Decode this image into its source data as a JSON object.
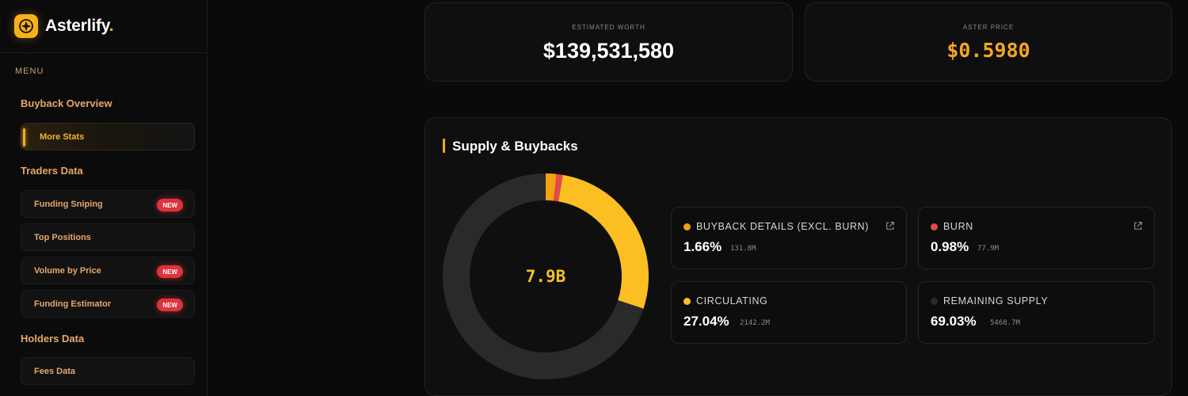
{
  "brand": {
    "name": "Asterlify",
    "dot": ".",
    "accent": "#f7b21b"
  },
  "sidebar": {
    "menu_label": "MENU",
    "sections": [
      {
        "title": "Buyback Overview",
        "items": [
          {
            "label": "More Stats",
            "active": true,
            "badge": ""
          }
        ]
      },
      {
        "title": "Traders Data",
        "items": [
          {
            "label": "Funding Sniping",
            "badge": "NEW"
          },
          {
            "label": "Top Positions",
            "badge": ""
          },
          {
            "label": "Volume by Price",
            "badge": "NEW"
          },
          {
            "label": "Funding Estimator",
            "badge": "NEW"
          }
        ]
      },
      {
        "title": "Holders Data",
        "items": [
          {
            "label": "Fees Data",
            "badge": ""
          }
        ]
      }
    ]
  },
  "stats": {
    "worth": {
      "label": "ESTIMATED WORTH",
      "value": "$139,531,580"
    },
    "price": {
      "label": "ASTER PRICE",
      "value": "$0.5980"
    }
  },
  "supply": {
    "title": "Supply & Buybacks",
    "center": "7.9B",
    "legend": [
      {
        "label": "BUYBACK DETAILS (EXCL. BURN)",
        "pct": "1.66%",
        "abs": "131.8M",
        "color": "#f5a011",
        "link": true
      },
      {
        "label": "BURN",
        "pct": "0.98%",
        "abs": "77.9M",
        "color": "#e5484d",
        "link": true
      },
      {
        "label": "CIRCULATING",
        "pct": "27.04%",
        "abs": "2142.2M",
        "color": "#fbbf24",
        "link": false
      },
      {
        "label": "REMAINING SUPPLY",
        "pct": "69.03%",
        "abs": "5468.7M",
        "color": "#2a2a2b",
        "link": false
      }
    ]
  },
  "chart_data": {
    "type": "pie",
    "categories": [
      "Buyback (excl. burn)",
      "Burn",
      "Circulating",
      "Remaining Supply"
    ],
    "values": [
      1.66,
      0.98,
      27.04,
      69.03
    ],
    "colors": [
      "#f5a011",
      "#e5484d",
      "#fbbf24",
      "#2a2a2b"
    ],
    "title": "Supply & Buybacks"
  }
}
